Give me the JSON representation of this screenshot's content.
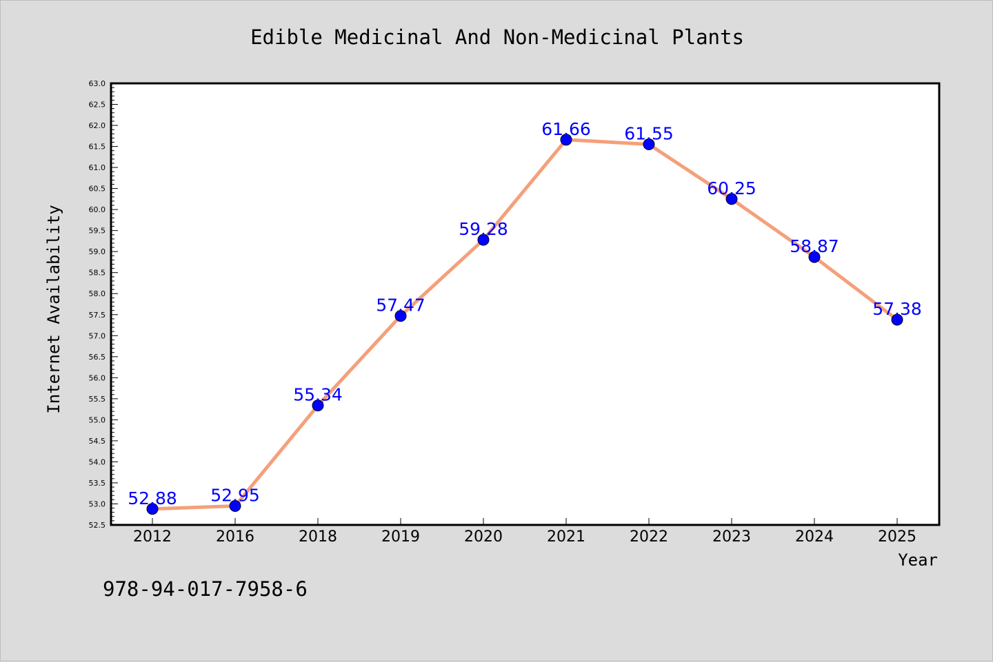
{
  "chart_data": {
    "type": "line",
    "title": "Edible Medicinal And Non-Medicinal Plants",
    "xlabel": "Year",
    "ylabel": "Internet Availability",
    "categories": [
      "2012",
      "2016",
      "2018",
      "2019",
      "2020",
      "2021",
      "2022",
      "2023",
      "2024",
      "2025"
    ],
    "series": [
      {
        "values": [
          52.88,
          52.95,
          55.34,
          57.47,
          59.28,
          61.66,
          61.55,
          60.25,
          58.87,
          57.38
        ],
        "line_color": "#f4a07a",
        "marker_color": "#0000ff"
      }
    ],
    "data_labels": [
      "52.88",
      "52.95",
      "55.34",
      "57.47",
      "59.28",
      "61.66",
      "61.55",
      "60.25",
      "58.87",
      "57.38"
    ],
    "ylim": [
      52.5,
      63.0
    ],
    "yticks": [
      "52.5",
      "53.0",
      "53.5",
      "54.0",
      "54.5",
      "55.0",
      "55.5",
      "56.0",
      "56.5",
      "57.0",
      "57.5",
      "58.0",
      "58.5",
      "59.0",
      "59.5",
      "60.0",
      "60.5",
      "61.0",
      "61.5",
      "62.0",
      "62.5",
      "63.0"
    ],
    "grid": false,
    "legend": "none"
  },
  "footer_text": "978-94-017-7958-6",
  "colors": {
    "background": "#dcdcdc",
    "plot_background": "#ffffff",
    "line": "#f4a07a",
    "marker": "#0000ff",
    "label": "#0000ff"
  }
}
